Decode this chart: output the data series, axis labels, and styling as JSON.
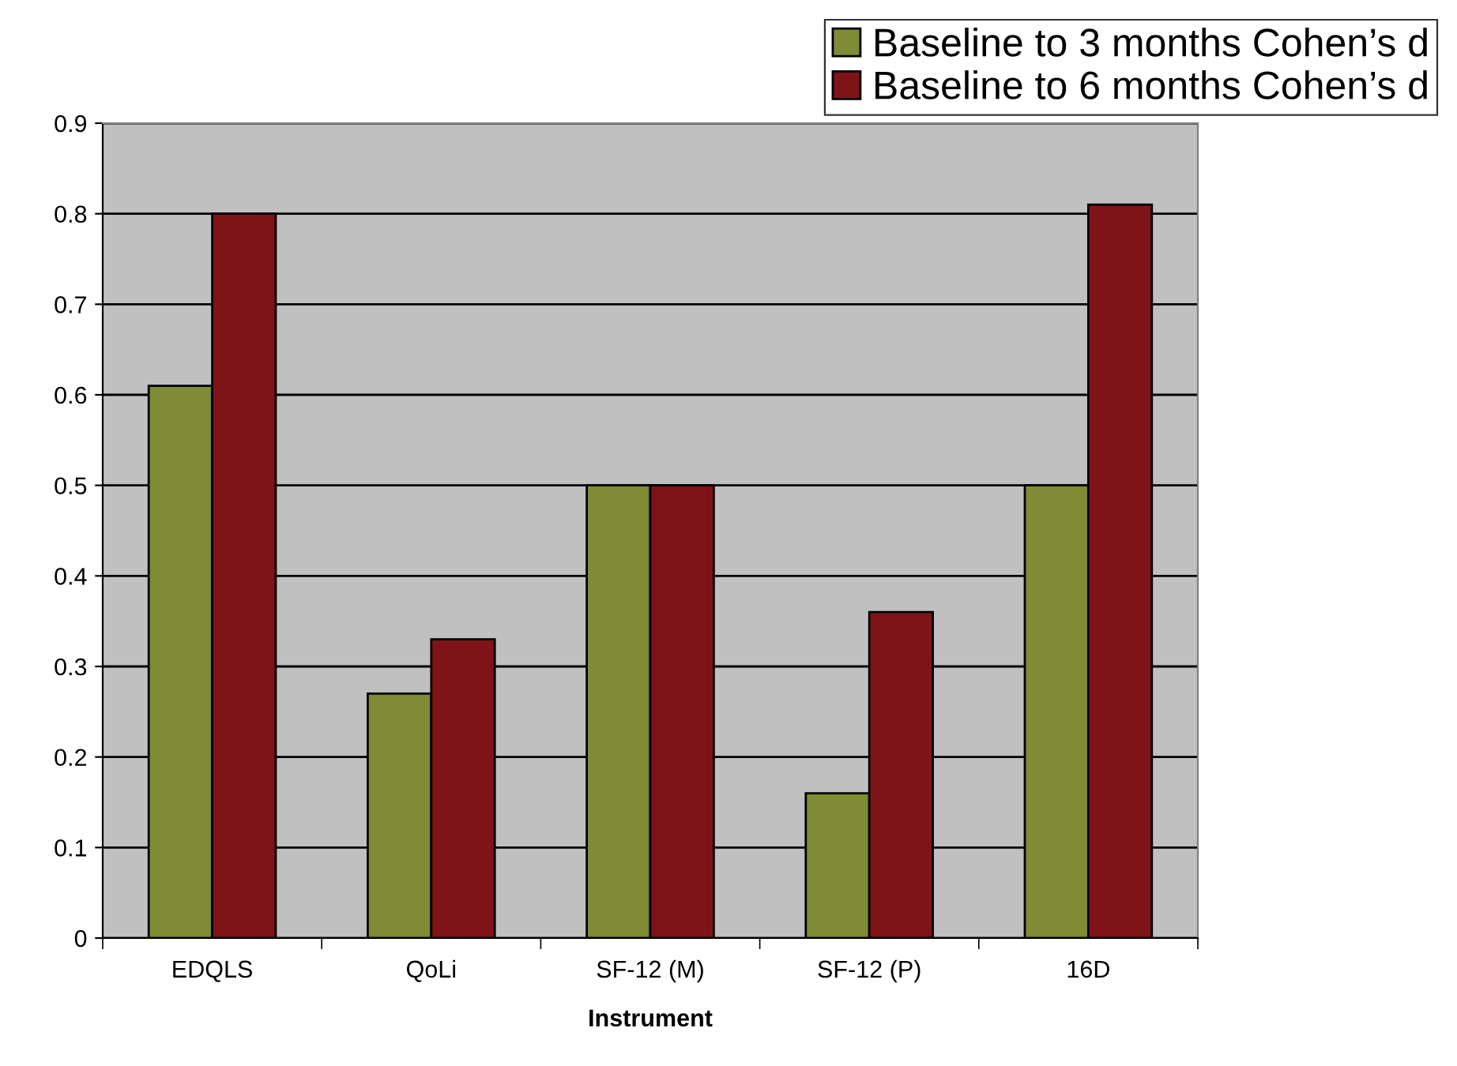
{
  "chart_data": {
    "type": "bar",
    "xlabel": "Instrument",
    "categories": [
      "EDQLS",
      "QoLi",
      "SF-12 (M)",
      "SF-12 (P)",
      "16D"
    ],
    "series": [
      {
        "name": "Baseline to 3 months Cohen’s d",
        "color": "#7f8b35",
        "values": [
          0.61,
          0.27,
          0.5,
          0.16,
          0.5
        ]
      },
      {
        "name": "Baseline to 6 months Cohen’s d",
        "color": "#7f1418",
        "values": [
          0.8,
          0.33,
          0.5,
          0.36,
          0.81
        ]
      }
    ],
    "ylim": [
      0,
      0.9
    ],
    "yticks": [
      0,
      0.1,
      0.2,
      0.3,
      0.4,
      0.5,
      0.6,
      0.7,
      0.8,
      0.9
    ],
    "grid": "y",
    "legend": "top right"
  }
}
